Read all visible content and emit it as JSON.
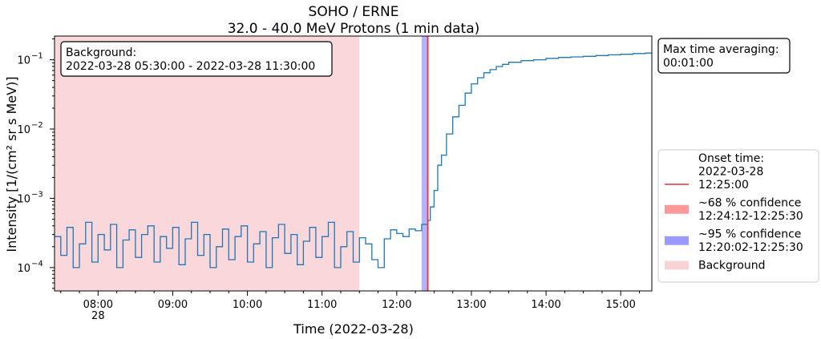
{
  "chart_data": {
    "type": "line",
    "title": "SOHO / ERNE",
    "subtitle": "32.0 - 40.0 MeV Protons (1 min data)",
    "xlabel": "Time (2022-03-28)",
    "ylabel": "Intensity [1/(cm² sr s MeV)]",
    "yscale": "log",
    "xlim": [
      "07:25",
      "15:25"
    ],
    "ylim": [
      4.6e-05,
      0.22
    ],
    "x_ticks": [
      "08:00",
      "09:00",
      "10:00",
      "11:00",
      "12:00",
      "13:00",
      "14:00",
      "15:00"
    ],
    "x_tick_day_label": "28",
    "y_ticks": [
      "10^-4",
      "10^-3",
      "10^-2",
      "10^-1"
    ],
    "series": [
      {
        "name": "",
        "color": "#1f77b4",
        "x": [
          "07:25",
          "07:30",
          "07:35",
          "07:40",
          "07:45",
          "07:50",
          "07:55",
          "08:00",
          "08:05",
          "08:10",
          "08:15",
          "08:20",
          "08:25",
          "08:30",
          "08:35",
          "08:40",
          "08:45",
          "08:50",
          "08:55",
          "09:00",
          "09:05",
          "09:10",
          "09:15",
          "09:20",
          "09:25",
          "09:30",
          "09:35",
          "09:40",
          "09:45",
          "09:50",
          "09:55",
          "10:00",
          "10:05",
          "10:10",
          "10:15",
          "10:20",
          "10:25",
          "10:30",
          "10:35",
          "10:40",
          "10:45",
          "10:50",
          "10:55",
          "11:00",
          "11:05",
          "11:10",
          "11:15",
          "11:20",
          "11:25",
          "11:30",
          "11:35",
          "11:40",
          "11:45",
          "11:50",
          "11:55",
          "12:00",
          "12:05",
          "12:10",
          "12:15",
          "12:20",
          "12:25",
          "12:27",
          "12:30",
          "12:33",
          "12:36",
          "12:40",
          "12:45",
          "12:50",
          "12:55",
          "13:00",
          "13:05",
          "13:10",
          "13:15",
          "13:20",
          "13:25",
          "13:30",
          "13:40",
          "13:50",
          "14:00",
          "14:10",
          "14:20",
          "14:30",
          "14:40",
          "14:50",
          "15:00",
          "15:10",
          "15:20",
          "15:25"
        ],
        "y": [
          0.00028,
          0.00015,
          0.00038,
          0.0001,
          0.00022,
          0.00045,
          0.00012,
          0.0003,
          0.00018,
          0.00042,
          0.0001,
          0.00025,
          0.00035,
          0.00014,
          0.0003,
          0.0004,
          0.00012,
          0.00028,
          0.00019,
          0.00038,
          0.00011,
          0.00026,
          0.00045,
          0.00015,
          0.0003,
          0.0001,
          0.0002,
          0.00036,
          0.00013,
          0.00028,
          0.0004,
          0.00012,
          0.00022,
          0.00033,
          0.0001,
          0.00027,
          0.00042,
          0.00016,
          0.0003,
          0.00011,
          0.00024,
          0.00038,
          0.00014,
          0.00028,
          0.00045,
          0.0001,
          0.0002,
          0.00033,
          0.00012,
          0.00027,
          0.00022,
          0.00013,
          0.0001,
          0.00026,
          0.00035,
          0.00031,
          0.00028,
          0.00036,
          0.00034,
          0.00042,
          0.00048,
          0.00075,
          0.0013,
          0.003,
          0.0042,
          0.0085,
          0.015,
          0.022,
          0.033,
          0.045,
          0.055,
          0.065,
          0.072,
          0.08,
          0.086,
          0.092,
          0.097,
          0.1,
          0.105,
          0.108,
          0.11,
          0.112,
          0.115,
          0.118,
          0.12,
          0.123,
          0.125,
          0.125
        ]
      }
    ],
    "shaded_regions": [
      {
        "name": "Background",
        "start": "07:25",
        "end": "11:30",
        "color": "#f4b7bb",
        "opacity": 0.55
      },
      {
        "name": "~95 % confidence",
        "start": "12:20:02",
        "end": "12:25:30",
        "color": "#8080ff",
        "opacity": 0.6
      },
      {
        "name": "~68 % confidence",
        "start": "12:24:12",
        "end": "12:25:30",
        "color": "#ff6666",
        "opacity": 0.6
      }
    ],
    "onset_line": {
      "time": "12:25:00",
      "color": "#e8333a"
    },
    "background_box": {
      "line1": "Background:",
      "line2": "2022-03-28 05:30:00 - 2022-03-28 11:30:00"
    },
    "max_avg_box": {
      "line1": "Max time averaging:",
      "line2": "00:01:00"
    },
    "legend": {
      "placement": "right",
      "entries": [
        {
          "kind": "line",
          "color": "#e8333a",
          "lines": [
            "Onset time:",
            "2022-03-28",
            "12:25:00"
          ]
        },
        {
          "kind": "patch",
          "color": "#ff9999",
          "lines": [
            "~68 % confidence",
            "12:24:12-12:25:30"
          ]
        },
        {
          "kind": "patch",
          "color": "#9999ff",
          "lines": [
            "~95 % confidence",
            "12:20:02-12:25:30"
          ]
        },
        {
          "kind": "patch",
          "color": "#f8d3d5",
          "lines": [
            "Background"
          ]
        }
      ]
    },
    "grid": false
  }
}
